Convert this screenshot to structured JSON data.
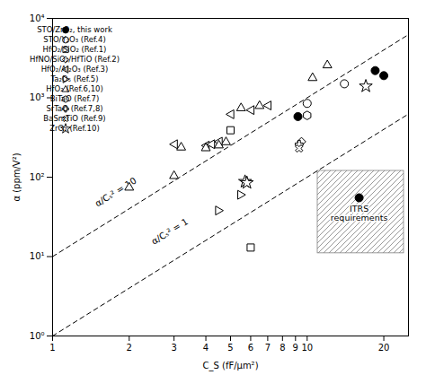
{
  "chart_data": {
    "type": "scatter",
    "xlabel": "C_S (fF/μm²)",
    "ylabel": "α (ppm/V²)",
    "log": true,
    "xlim": [
      1,
      25
    ],
    "xticks": [
      1,
      2,
      3,
      4,
      5,
      6,
      7,
      8,
      9,
      10,
      20
    ],
    "ylim": [
      1,
      10000
    ],
    "yticks": [
      {
        "value": 1,
        "label": "10⁰"
      },
      {
        "value": 10,
        "label": "10¹"
      },
      {
        "value": 100,
        "label": "10²"
      },
      {
        "value": 1000,
        "label": "10³"
      },
      {
        "value": 10000,
        "label": "10⁴"
      }
    ],
    "grid": false,
    "legend": "upper left",
    "series": [
      {
        "name": "STO/ZrO₂, this work",
        "color": "black",
        "marker": "circle",
        "x": [
          9.2,
          18.5,
          20.0
        ],
        "y": [
          580,
          2200,
          1900
        ]
      },
      {
        "name": "STO/Y₂O₃ (Ref.4)",
        "color": "black",
        "marker": "circle-open",
        "x": [
          10.0,
          14.0
        ],
        "y": [
          850,
          1500
        ]
      },
      {
        "name": "HfO₂/SiO₂ (Ref.1)",
        "color": "black",
        "marker": "square-open",
        "x": [
          5.0,
          6.0
        ],
        "y": [
          390,
          13
        ]
      },
      {
        "name": "HfNO/SiO₂/HfTiO (Ref.2)",
        "color": "black",
        "marker": "diamond-open",
        "x": [
          9.5
        ],
        "y": [
          280
        ]
      },
      {
        "name": "HfO₂/Al₂O₃ (Ref.3)",
        "color": "black",
        "marker": "triangle-left-open",
        "x": [
          3.0,
          4.0,
          4.2,
          4.5,
          5.0,
          6.0,
          7.0
        ],
        "y": [
          260,
          250,
          260,
          280,
          620,
          700,
          800
        ]
      },
      {
        "name": "Ta₂O₅ (Ref.5)",
        "color": "black",
        "marker": "triangle-right-open",
        "x": [
          4.5,
          5.5
        ],
        "y": [
          38,
          60
        ]
      },
      {
        "name": "HfO₂ (Ref.6,10)",
        "color": "black",
        "marker": "triangle-up-open",
        "x": [
          2.0,
          3.0,
          3.2,
          4.0,
          4.5,
          4.8,
          5.5,
          6.5,
          10.5,
          12.0
        ],
        "y": [
          75,
          105,
          240,
          235,
          255,
          280,
          750,
          800,
          1800,
          2600
        ]
      },
      {
        "name": "BiTaO (Ref.7)",
        "color": "black",
        "marker": "hexagon-open",
        "x": [
          10.0
        ],
        "y": [
          600
        ]
      },
      {
        "name": "SrTaO (Ref.7,8)",
        "color": "black",
        "marker": "plus-open",
        "x": [
          9.3
        ],
        "y": [
          260
        ]
      },
      {
        "name": "BaSmTiO (Ref.9)",
        "color": "black",
        "marker": "x-open",
        "x": [
          9.3
        ],
        "y": [
          230
        ]
      },
      {
        "name": "ZrO₂ (Ref.10)",
        "color": "black",
        "marker": "star-open",
        "x": [
          5.7,
          5.8,
          17.0
        ],
        "y": [
          88,
          85,
          1400
        ]
      }
    ],
    "extra_points": [
      {
        "x": 16.0,
        "y": 55,
        "color": "black",
        "marker": "circle"
      }
    ],
    "regions": [
      {
        "x0": 11,
        "x1": 24,
        "y0": 11,
        "y1": 120,
        "color": "gray"
      }
    ],
    "reference_lines": [
      {
        "label": "α/Cₛ² = 10",
        "label_x": 1.5,
        "label_y": 42,
        "x": [
          1,
          25
        ],
        "y": [
          10,
          6250
        ],
        "color": "black",
        "line_style": "dashed"
      },
      {
        "label": "α/Cₛ² = 1",
        "label_x": 2.5,
        "label_y": 14,
        "x": [
          1,
          25
        ],
        "y": [
          1,
          625
        ],
        "color": "black",
        "line_style": "dashed"
      }
    ],
    "annotations": [
      {
        "text": "ITRS\nrequirements",
        "x": 16.0,
        "y": 35,
        "color": "black"
      }
    ]
  }
}
